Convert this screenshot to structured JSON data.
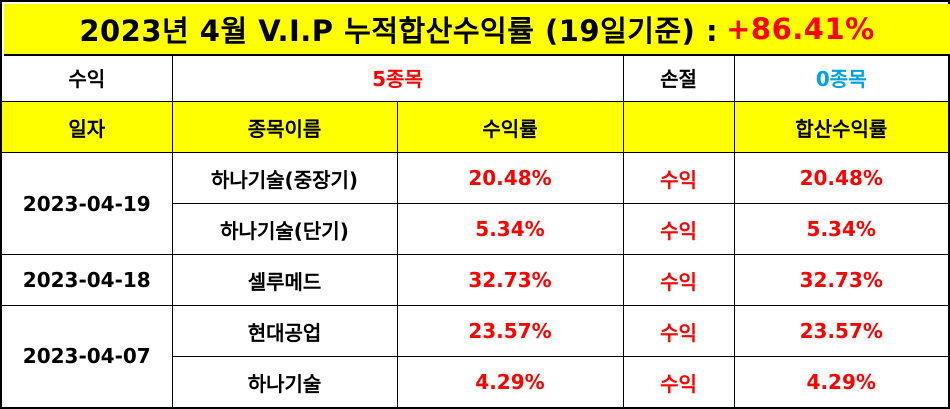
{
  "title": {
    "text": "2023년 4월 V.I.P 누적합산수익률 (19일기준) :",
    "total_return": "+86.41%"
  },
  "summary": {
    "profit_label": "수익",
    "profit_value": "5종목",
    "loss_label": "손절",
    "loss_value": "0종목"
  },
  "columns": {
    "date": "일자",
    "stock_name": "종목이름",
    "return": "수익률",
    "status": "",
    "cumulative": "합산수익률"
  },
  "groups": [
    {
      "date": "2023-04-19",
      "rows": [
        {
          "name": "하나기술(중장기)",
          "return": "20.48%",
          "status": "수익",
          "cumulative": "20.48%"
        },
        {
          "name": "하나기술(단기)",
          "return": "5.34%",
          "status": "수익",
          "cumulative": "5.34%"
        }
      ]
    },
    {
      "date": "2023-04-18",
      "rows": [
        {
          "name": "셀루메드",
          "return": "32.73%",
          "status": "수익",
          "cumulative": "32.73%"
        }
      ]
    },
    {
      "date": "2023-04-07",
      "rows": [
        {
          "name": "현대공업",
          "return": "23.57%",
          "status": "수익",
          "cumulative": "23.57%"
        },
        {
          "name": "하나기술",
          "return": "4.29%",
          "status": "수익",
          "cumulative": "4.29%"
        }
      ]
    }
  ],
  "colors": {
    "header_bg": "#ffff00",
    "profit_text": "#ff0000",
    "loss_text": "#00a3e0"
  }
}
